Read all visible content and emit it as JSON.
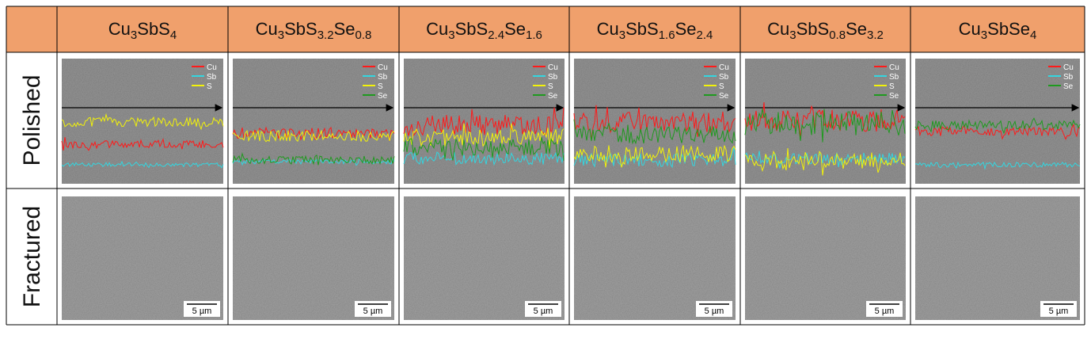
{
  "columns": [
    {
      "formula": [
        "Cu",
        "3",
        "SbS",
        "4"
      ],
      "legend": [
        {
          "name": "Cu",
          "color": "#ff1a1a"
        },
        {
          "name": "Sb",
          "color": "#33d6e0"
        },
        {
          "name": "S",
          "color": "#f2f20a"
        }
      ]
    },
    {
      "formula": [
        "Cu",
        "3",
        "SbS",
        "3.2",
        "Se",
        "0.8"
      ],
      "legend": [
        {
          "name": "Cu",
          "color": "#ff1a1a"
        },
        {
          "name": "Sb",
          "color": "#33d6e0"
        },
        {
          "name": "S",
          "color": "#f2f20a"
        },
        {
          "name": "Se",
          "color": "#1f9a1f"
        }
      ]
    },
    {
      "formula": [
        "Cu",
        "3",
        "SbS",
        "2.4",
        "Se",
        "1.6"
      ],
      "legend": [
        {
          "name": "Cu",
          "color": "#ff1a1a"
        },
        {
          "name": "Sb",
          "color": "#33d6e0"
        },
        {
          "name": "S",
          "color": "#f2f20a"
        },
        {
          "name": "Se",
          "color": "#1f9a1f"
        }
      ]
    },
    {
      "formula": [
        "Cu",
        "3",
        "SbS",
        "1.6",
        "Se",
        "2.4"
      ],
      "legend": [
        {
          "name": "Cu",
          "color": "#ff1a1a"
        },
        {
          "name": "Sb",
          "color": "#33d6e0"
        },
        {
          "name": "S",
          "color": "#f2f20a"
        },
        {
          "name": "Se",
          "color": "#1f9a1f"
        }
      ]
    },
    {
      "formula": [
        "Cu",
        "3",
        "SbS",
        "0.8",
        "Se",
        "3.2"
      ],
      "legend": [
        {
          "name": "Cu",
          "color": "#ff1a1a"
        },
        {
          "name": "Sb",
          "color": "#33d6e0"
        },
        {
          "name": "S",
          "color": "#f2f20a"
        },
        {
          "name": "Se",
          "color": "#1f9a1f"
        }
      ]
    },
    {
      "formula": [
        "Cu",
        "3",
        "SbSe",
        "4"
      ],
      "legend": [
        {
          "name": "Cu",
          "color": "#ff1a1a"
        },
        {
          "name": "Sb",
          "color": "#33d6e0"
        },
        {
          "name": "Se",
          "color": "#1f9a1f"
        }
      ]
    }
  ],
  "rows": [
    "Polished",
    "Fractured"
  ],
  "scale_bar": "5 µm"
}
